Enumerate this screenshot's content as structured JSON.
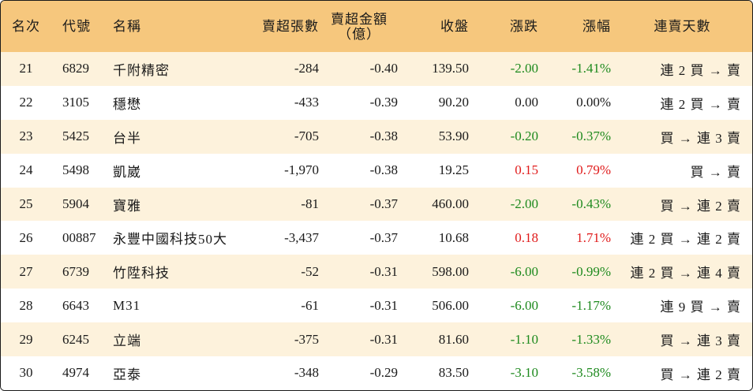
{
  "header": {
    "rank": "名次",
    "code": "代號",
    "name": "名稱",
    "net_sell_volume": "賣超張數",
    "net_sell_amount_line1": "賣超金額",
    "net_sell_amount_line2": "（億）",
    "close": "收盤",
    "change": "漲跌",
    "change_pct": "漲幅",
    "streak": "連賣天數"
  },
  "colors": {
    "header_bg": "#f6c77d",
    "row_alt_bg": "#fdf2dc",
    "down": "#1e8a1e",
    "up": "#e01b1b"
  },
  "rows": [
    {
      "rank": "21",
      "code": "6829",
      "name": "千附精密",
      "vol": "-284",
      "amt": "-0.40",
      "close": "139.50",
      "chg": "-2.00",
      "pct": "-1.41%",
      "dir": "down",
      "streak": "連 2 買 → 賣"
    },
    {
      "rank": "22",
      "code": "3105",
      "name": "穩懋",
      "vol": "-433",
      "amt": "-0.39",
      "close": "90.20",
      "chg": "0.00",
      "pct": "0.00%",
      "dir": "flat",
      "streak": "連 2 買 → 賣"
    },
    {
      "rank": "23",
      "code": "5425",
      "name": "台半",
      "vol": "-705",
      "amt": "-0.38",
      "close": "53.90",
      "chg": "-0.20",
      "pct": "-0.37%",
      "dir": "down",
      "streak": "買 → 連 3 賣"
    },
    {
      "rank": "24",
      "code": "5498",
      "name": "凱崴",
      "vol": "-1,970",
      "amt": "-0.38",
      "close": "19.25",
      "chg": "0.15",
      "pct": "0.79%",
      "dir": "up",
      "streak": "買 → 賣"
    },
    {
      "rank": "25",
      "code": "5904",
      "name": "寶雅",
      "vol": "-81",
      "amt": "-0.37",
      "close": "460.00",
      "chg": "-2.00",
      "pct": "-0.43%",
      "dir": "down",
      "streak": "買 → 連 2 賣"
    },
    {
      "rank": "26",
      "code": "00887",
      "name": "永豐中國科技50大",
      "vol": "-3,437",
      "amt": "-0.37",
      "close": "10.68",
      "chg": "0.18",
      "pct": "1.71%",
      "dir": "up",
      "streak": "連 2 買 → 連 2 賣"
    },
    {
      "rank": "27",
      "code": "6739",
      "name": "竹陞科技",
      "vol": "-52",
      "amt": "-0.31",
      "close": "598.00",
      "chg": "-6.00",
      "pct": "-0.99%",
      "dir": "down",
      "streak": "連 2 買 → 連 4 賣"
    },
    {
      "rank": "28",
      "code": "6643",
      "name": "M31",
      "vol": "-61",
      "amt": "-0.31",
      "close": "506.00",
      "chg": "-6.00",
      "pct": "-1.17%",
      "dir": "down",
      "streak": "連 9 買 → 賣"
    },
    {
      "rank": "29",
      "code": "6245",
      "name": "立端",
      "vol": "-375",
      "amt": "-0.31",
      "close": "81.60",
      "chg": "-1.10",
      "pct": "-1.33%",
      "dir": "down",
      "streak": "買 → 連 3 賣"
    },
    {
      "rank": "30",
      "code": "4974",
      "name": "亞泰",
      "vol": "-348",
      "amt": "-0.29",
      "close": "83.50",
      "chg": "-3.10",
      "pct": "-3.58%",
      "dir": "down",
      "streak": "買 → 連 2 賣"
    }
  ]
}
